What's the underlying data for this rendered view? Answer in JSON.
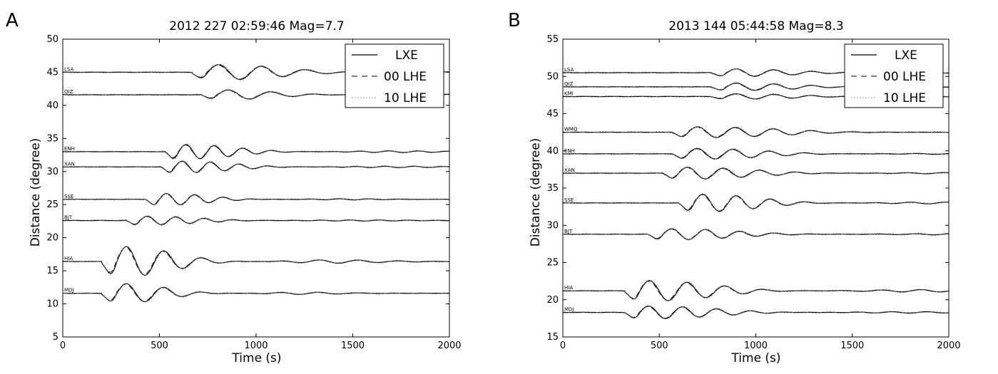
{
  "chart_data": [
    {
      "type": "line",
      "panel": "A",
      "title": "2012 227 02:59:46 Mag=7.7",
      "xlabel": "Time (s)",
      "ylabel": "Distance (degree)",
      "xlim": [
        0,
        2000
      ],
      "ylim": [
        5,
        50
      ],
      "xticks": [
        0,
        500,
        1000,
        1500,
        2000
      ],
      "yticks": [
        5,
        10,
        15,
        20,
        25,
        30,
        35,
        40,
        45,
        50
      ],
      "legend": {
        "position": "top-right",
        "entries": [
          {
            "name": "LXE",
            "style": "solid"
          },
          {
            "name": "00 LHE",
            "style": "dashed"
          },
          {
            "name": "10 LHE",
            "style": "dotted"
          }
        ]
      },
      "stations": [
        {
          "name": "LSA",
          "distance": 45.0,
          "onset": 750,
          "period": 230,
          "amp": 1.6,
          "duration": 900
        },
        {
          "name": "QIZ",
          "distance": 41.6,
          "onset": 800,
          "period": 230,
          "amp": 1.0,
          "duration": 700
        },
        {
          "name": "ENH",
          "distance": 33.0,
          "onset": 600,
          "period": 150,
          "amp": 1.5,
          "duration": 700
        },
        {
          "name": "XAN",
          "distance": 30.7,
          "onset": 580,
          "period": 150,
          "amp": 1.2,
          "duration": 700
        },
        {
          "name": "SSE",
          "distance": 25.8,
          "onset": 500,
          "period": 150,
          "amp": 1.2,
          "duration": 600
        },
        {
          "name": "BJT",
          "distance": 22.6,
          "onset": 400,
          "period": 150,
          "amp": 0.9,
          "duration": 700
        },
        {
          "name": "HIA",
          "distance": 16.4,
          "onset": 280,
          "period": 200,
          "amp": 3.1,
          "duration": 700
        },
        {
          "name": "MDJ",
          "distance": 11.6,
          "onset": 280,
          "period": 200,
          "amp": 2.0,
          "duration": 600
        }
      ]
    },
    {
      "type": "line",
      "panel": "B",
      "title": "2013 144 05:44:58 Mag=8.3",
      "xlabel": "Time (s)",
      "ylabel": "Distance (degree)",
      "xlim": [
        0,
        2000
      ],
      "ylim": [
        15,
        55
      ],
      "xticks": [
        0,
        500,
        1000,
        1500,
        2000
      ],
      "yticks": [
        15,
        20,
        25,
        30,
        35,
        40,
        45,
        50,
        55
      ],
      "legend": {
        "position": "top-right",
        "entries": [
          {
            "name": "LXE",
            "style": "solid"
          },
          {
            "name": "00 LHE",
            "style": "dashed"
          },
          {
            "name": "10 LHE",
            "style": "dotted"
          }
        ]
      },
      "stations": [
        {
          "name": "LSA",
          "distance": 50.5,
          "onset": 850,
          "period": 200,
          "amp": 0.7,
          "duration": 800
        },
        {
          "name": "QIZ",
          "distance": 48.6,
          "onset": 850,
          "period": 200,
          "amp": 0.7,
          "duration": 800
        },
        {
          "name": "KMI",
          "distance": 47.3,
          "onset": 850,
          "period": 200,
          "amp": 0.5,
          "duration": 800
        },
        {
          "name": "WMQ",
          "distance": 42.5,
          "onset": 650,
          "period": 200,
          "amp": 1.0,
          "duration": 1100
        },
        {
          "name": "ENH",
          "distance": 39.6,
          "onset": 650,
          "period": 190,
          "amp": 1.0,
          "duration": 900
        },
        {
          "name": "XAN",
          "distance": 37.0,
          "onset": 600,
          "period": 190,
          "amp": 1.1,
          "duration": 900
        },
        {
          "name": "SSE",
          "distance": 33.0,
          "onset": 680,
          "period": 180,
          "amp": 1.6,
          "duration": 800
        },
        {
          "name": "BJT",
          "distance": 28.8,
          "onset": 520,
          "period": 180,
          "amp": 1.0,
          "duration": 900
        },
        {
          "name": "HIA",
          "distance": 21.2,
          "onset": 400,
          "period": 200,
          "amp": 1.9,
          "duration": 900
        },
        {
          "name": "MDJ",
          "distance": 18.3,
          "onset": 400,
          "period": 180,
          "amp": 1.2,
          "duration": 900
        }
      ]
    }
  ]
}
